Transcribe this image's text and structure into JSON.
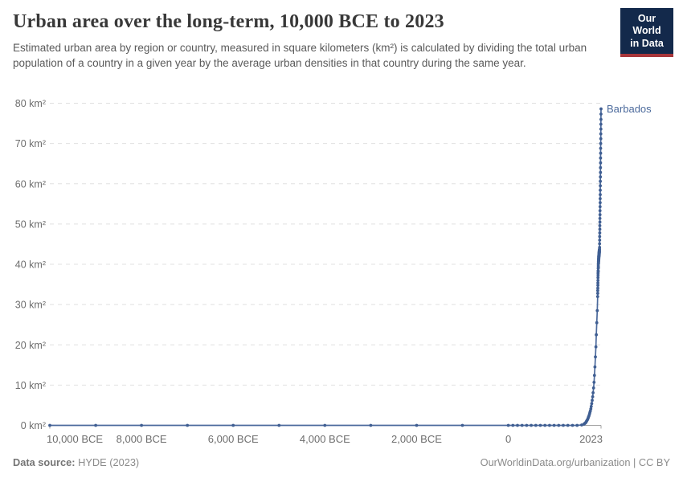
{
  "header": {
    "title": "Urban area over the long-term, 10,000 BCE to 2023",
    "subtitle": "Estimated urban area by region or country, measured in square kilometers (km²) is calculated by dividing the total urban population of a country in a given year by the average urban densities in that country during the same year."
  },
  "logo": {
    "line1": "Our World",
    "line2": "in Data",
    "bg_color": "#13294b",
    "accent_color": "#a8363a"
  },
  "footer": {
    "source_label": "Data source:",
    "source_value": "HYDE (2023)",
    "link": "OurWorldinData.org/urbanization | CC BY"
  },
  "chart_data": {
    "type": "line",
    "title": "Urban area over the long-term, 10,000 BCE to 2023",
    "xlabel": "",
    "ylabel": "km²",
    "xlim": [
      -10000,
      2023
    ],
    "ylim": [
      0,
      80
    ],
    "grid": "horizontal-dashed",
    "grid_color": "#e0e0e0",
    "axis_color": "#a3a3a3",
    "tick_label_color": "#6d6d6d",
    "legend_position": "end-of-line-label",
    "x_ticks": [
      {
        "year": -10000,
        "label": "10,000 BCE"
      },
      {
        "year": -8000,
        "label": "8,000 BCE"
      },
      {
        "year": -6000,
        "label": "6,000 BCE"
      },
      {
        "year": -4000,
        "label": "4,000 BCE"
      },
      {
        "year": -2000,
        "label": "2,000 BCE"
      },
      {
        "year": 0,
        "label": "0"
      },
      {
        "year": 2023,
        "label": "2023"
      }
    ],
    "y_ticks": [
      {
        "value": 0,
        "label": "0 km²"
      },
      {
        "value": 10,
        "label": "10 km²"
      },
      {
        "value": 20,
        "label": "20 km²"
      },
      {
        "value": 30,
        "label": "30 km²"
      },
      {
        "value": 40,
        "label": "40 km²"
      },
      {
        "value": 50,
        "label": "50 km²"
      },
      {
        "value": 60,
        "label": "60 km²"
      },
      {
        "value": 70,
        "label": "70 km²"
      },
      {
        "value": 80,
        "label": "80 km²"
      }
    ],
    "series": [
      {
        "name": "Barbados",
        "color": "#4c6a9c",
        "marker_color": "#3f5e92",
        "points": [
          [
            -10000,
            0
          ],
          [
            -9000,
            0
          ],
          [
            -8000,
            0
          ],
          [
            -7000,
            0
          ],
          [
            -6000,
            0
          ],
          [
            -5000,
            0
          ],
          [
            -4000,
            0
          ],
          [
            -3000,
            0
          ],
          [
            -2000,
            0
          ],
          [
            -1000,
            0
          ],
          [
            0,
            0
          ],
          [
            100,
            0
          ],
          [
            200,
            0
          ],
          [
            300,
            0
          ],
          [
            400,
            0
          ],
          [
            500,
            0
          ],
          [
            600,
            0
          ],
          [
            700,
            0
          ],
          [
            800,
            0
          ],
          [
            900,
            0
          ],
          [
            1000,
            0
          ],
          [
            1100,
            0
          ],
          [
            1200,
            0
          ],
          [
            1300,
            0
          ],
          [
            1400,
            0
          ],
          [
            1500,
            0
          ],
          [
            1600,
            0.1
          ],
          [
            1650,
            0.3
          ],
          [
            1660,
            0.4
          ],
          [
            1670,
            0.5
          ],
          [
            1680,
            0.6
          ],
          [
            1690,
            0.7
          ],
          [
            1700,
            0.9
          ],
          [
            1710,
            1.1
          ],
          [
            1720,
            1.3
          ],
          [
            1730,
            1.5
          ],
          [
            1740,
            1.8
          ],
          [
            1750,
            2.1
          ],
          [
            1760,
            2.4
          ],
          [
            1770,
            2.8
          ],
          [
            1780,
            3.2
          ],
          [
            1790,
            3.6
          ],
          [
            1800,
            4.1
          ],
          [
            1810,
            4.7
          ],
          [
            1820,
            5.4
          ],
          [
            1830,
            6.2
          ],
          [
            1840,
            7.1
          ],
          [
            1850,
            8.1
          ],
          [
            1860,
            9.3
          ],
          [
            1870,
            10.7
          ],
          [
            1880,
            12.4
          ],
          [
            1890,
            14.5
          ],
          [
            1900,
            17
          ],
          [
            1910,
            19.5
          ],
          [
            1920,
            22.5
          ],
          [
            1930,
            25.5
          ],
          [
            1940,
            28.5
          ],
          [
            1950,
            32
          ],
          [
            1951,
            32.8
          ],
          [
            1952,
            33.5
          ],
          [
            1953,
            34.1
          ],
          [
            1954,
            34.8
          ],
          [
            1955,
            35.4
          ],
          [
            1956,
            36
          ],
          [
            1957,
            36.7
          ],
          [
            1958,
            37.3
          ],
          [
            1959,
            37.8
          ],
          [
            1960,
            38.4
          ],
          [
            1961,
            39
          ],
          [
            1962,
            38.2
          ],
          [
            1963,
            39.6
          ],
          [
            1964,
            40.1
          ],
          [
            1965,
            39.2
          ],
          [
            1966,
            40.6
          ],
          [
            1967,
            41
          ],
          [
            1968,
            40.2
          ],
          [
            1969,
            41.4
          ],
          [
            1970,
            40.6
          ],
          [
            1971,
            41.8
          ],
          [
            1972,
            40.9
          ],
          [
            1973,
            42.1
          ],
          [
            1974,
            41.2
          ],
          [
            1975,
            42.4
          ],
          [
            1976,
            41.5
          ],
          [
            1977,
            42.7
          ],
          [
            1978,
            41.8
          ],
          [
            1979,
            42.9
          ],
          [
            1980,
            42
          ],
          [
            1981,
            43.1
          ],
          [
            1982,
            42.2
          ],
          [
            1983,
            43.3
          ],
          [
            1984,
            42.5
          ],
          [
            1985,
            43.5
          ],
          [
            1986,
            42.8
          ],
          [
            1987,
            43.6
          ],
          [
            1988,
            43
          ],
          [
            1989,
            43.8
          ],
          [
            1990,
            43.3
          ],
          [
            1991,
            44.2
          ],
          [
            1992,
            45.1
          ],
          [
            1993,
            46
          ],
          [
            1994,
            46.9
          ],
          [
            1995,
            47.8
          ],
          [
            1996,
            48.7
          ],
          [
            1997,
            49.6
          ],
          [
            1998,
            50.5
          ],
          [
            1999,
            51.4
          ],
          [
            2000,
            52.3
          ],
          [
            2001,
            53.3
          ],
          [
            2002,
            54.3
          ],
          [
            2003,
            55.3
          ],
          [
            2004,
            56.3
          ],
          [
            2005,
            57.3
          ],
          [
            2006,
            58.4
          ],
          [
            2007,
            59.5
          ],
          [
            2008,
            60.6
          ],
          [
            2009,
            61.7
          ],
          [
            2010,
            62.8
          ],
          [
            2011,
            64
          ],
          [
            2012,
            65.2
          ],
          [
            2013,
            66.4
          ],
          [
            2014,
            67.6
          ],
          [
            2015,
            68.8
          ],
          [
            2016,
            70
          ],
          [
            2017,
            71.2
          ],
          [
            2018,
            72.4
          ],
          [
            2019,
            73.6
          ],
          [
            2020,
            74.8
          ],
          [
            2021,
            76
          ],
          [
            2022,
            77.3
          ],
          [
            2023,
            78.6
          ]
        ]
      }
    ]
  }
}
